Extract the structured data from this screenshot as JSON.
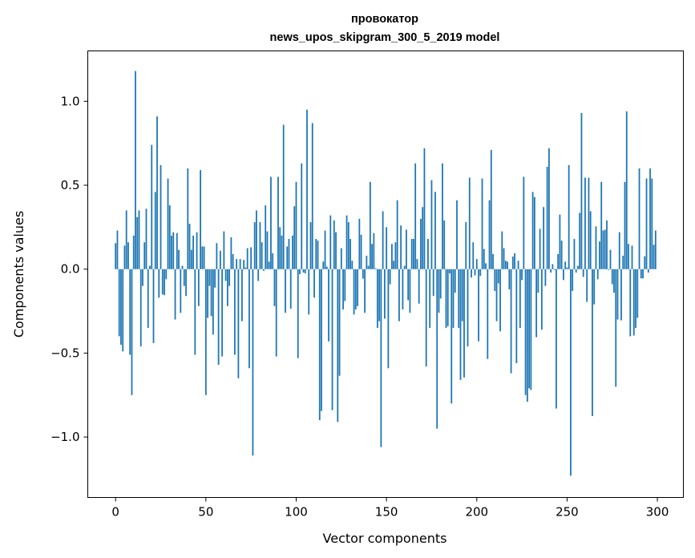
{
  "chart_data": {
    "type": "bar",
    "title": [
      "провокатор",
      "news_upos_skipgram_300_5_2019 model"
    ],
    "xlabel": "Vector components",
    "ylabel": "Components values",
    "xlim": [
      -15.4,
      314.4
    ],
    "ylim": [
      -1.36,
      1.3
    ],
    "xticks": [
      0,
      50,
      100,
      150,
      200,
      250,
      300
    ],
    "xtick_labels": [
      "0",
      "50",
      "100",
      "150",
      "200",
      "250",
      "300"
    ],
    "yticks": [
      -1.0,
      -0.5,
      0.0,
      0.5,
      1.0
    ],
    "ytick_labels": [
      "−1.0",
      "−0.5",
      "0.0",
      "0.5",
      "1.0"
    ],
    "grid": false,
    "bar_color": "#1f77b4",
    "values": [
      0.155,
      0.23,
      -0.4,
      -0.45,
      -0.49,
      0.14,
      0.35,
      0.16,
      -0.51,
      -0.75,
      0.2,
      1.18,
      0.31,
      0.35,
      -0.46,
      -0.1,
      0.16,
      0.36,
      -0.35,
      0.02,
      0.74,
      -0.44,
      0.46,
      0.91,
      -0.17,
      0.62,
      -0.15,
      -0.155,
      -0.06,
      0.54,
      0.38,
      0.2,
      0.22,
      -0.3,
      0.215,
      0.115,
      -0.26,
      0.02,
      -0.1,
      -0.16,
      0.6,
      0.27,
      0.115,
      0.2,
      -0.51,
      0.22,
      -0.22,
      0.59,
      0.135,
      0.135,
      -0.75,
      -0.29,
      -0.1,
      -0.28,
      -0.39,
      -0.11,
      0.155,
      -0.57,
      0.11,
      -0.52,
      0.225,
      -0.07,
      -0.22,
      -0.1,
      0.19,
      0.09,
      -0.51,
      0.06,
      -0.65,
      0.06,
      -0.31,
      0.055,
      0.01,
      0.125,
      -0.59,
      0.13,
      -1.11,
      0.28,
      0.35,
      -0.07,
      0.28,
      0.16,
      -0.01,
      0.38,
      0.225,
      0.045,
      0.55,
      0.095,
      -0.22,
      -0.52,
      0.55,
      0.25,
      0.2,
      0.86,
      -0.26,
      0.135,
      0.18,
      -0.235,
      0.2,
      0.375,
      0.52,
      -0.53,
      -0.03,
      0.63,
      -0.02,
      -0.025,
      0.95,
      -0.27,
      0.28,
      0.87,
      -0.17,
      0.18,
      0.17,
      -0.9,
      -0.845,
      0.045,
      0.23,
      0.015,
      -0.43,
      0.32,
      -0.84,
      0.29,
      0.22,
      -0.91,
      -0.635,
      0.125,
      -0.24,
      -0.19,
      0.32,
      0.28,
      0.18,
      0.05,
      -0.27,
      -0.24,
      -0.22,
      0.3,
      0.205,
      -0.056,
      -0.26,
      0.08,
      0.02,
      0.52,
      0.15,
      0.215,
      0.005,
      -0.35,
      -0.31,
      -1.06,
      0.345,
      -0.295,
      0.25,
      -0.59,
      -0.09,
      0.15,
      0.05,
      0.16,
      0.41,
      -0.31,
      0.26,
      -0.24,
      0.02,
      0.235,
      -0.185,
      -0.26,
      0.18,
      0.18,
      0.63,
      0.06,
      -0.205,
      0.3,
      0.37,
      0.72,
      -0.58,
      0.18,
      -0.35,
      0.53,
      -0.16,
      0.46,
      -0.95,
      -0.26,
      -0.175,
      0.63,
      0.29,
      -0.35,
      -0.34,
      -0.025,
      -0.8,
      -0.35,
      -0.14,
      0.41,
      -0.35,
      -0.66,
      -0.31,
      -0.645,
      0.28,
      -0.46,
      0.545,
      -0.05,
      0.16,
      -0.037,
      0.06,
      -0.43,
      -0.04,
      0.54,
      0.12,
      0.035,
      -0.535,
      0.41,
      0.71,
      0.09,
      -0.13,
      -0.31,
      -0.085,
      -0.37,
      0.225,
      0.125,
      0.05,
      0.045,
      -0.12,
      -0.62,
      0.075,
      0.095,
      -0.56,
      0.05,
      -0.35,
      -0.065,
      0.55,
      -0.75,
      -0.79,
      -0.71,
      -0.72,
      0.46,
      0.43,
      -0.405,
      -0.14,
      0.24,
      -0.36,
      0.37,
      -0.1,
      0.61,
      0.72,
      -0.02,
      0.03,
      -0.005,
      -0.83,
      0.09,
      0.325,
      0.17,
      -0.065,
      0.045,
      0.01,
      0.62,
      -1.23,
      -0.13,
      0.18,
      -0.02,
      0.02,
      0.335,
      0.93,
      -0.046,
      0.545,
      -0.195,
      0.545,
      0.345,
      -0.875,
      -0.21,
      0.255,
      -0.06,
      0.165,
      0.52,
      0.23,
      0.235,
      0.29,
      -0.005,
      0.115,
      -0.09,
      -0.14,
      -0.7,
      -0.3,
      0.22,
      -0.305,
      0.08,
      0.52,
      0.94,
      0.15,
      -0.4,
      0.14,
      -0.395,
      -0.35,
      -0.29,
      0.6,
      -0.055,
      -0.055,
      0.077,
      0.54,
      -0.02,
      0.6,
      0.54,
      0.145,
      0.23
    ]
  }
}
